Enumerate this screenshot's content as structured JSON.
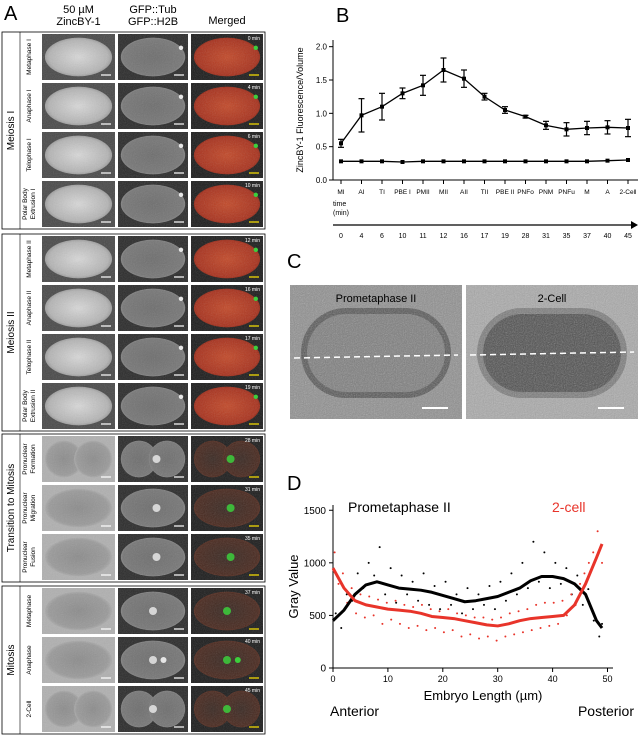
{
  "panel_labels": [
    "A",
    "B",
    "C",
    "D"
  ],
  "panel_a": {
    "columns": [
      [
        "50 µM",
        "ZincBY-1"
      ],
      [
        "GFP::Tub",
        "GFP::H2B"
      ],
      [
        "Merged"
      ]
    ],
    "groups": [
      {
        "label": "Meiosis I",
        "rows": [
          {
            "label": [
              "Metaphase I"
            ],
            "time": "0 min"
          },
          {
            "label": [
              "Anaphase I"
            ],
            "time": "4 min"
          },
          {
            "label": [
              "Telophase I"
            ],
            "time": "6 min"
          },
          {
            "label": [
              "Polar Body",
              "Extrusion I"
            ],
            "time": "10 min"
          }
        ]
      },
      {
        "label": "Meiosis II",
        "rows": [
          {
            "label": [
              "Metaphase II"
            ],
            "time": "12 min"
          },
          {
            "label": [
              "Anaphase II"
            ],
            "time": "16 min"
          },
          {
            "label": [
              "Telophase II"
            ],
            "time": "17 min"
          },
          {
            "label": [
              "Polar Body",
              "Extrusion II"
            ],
            "time": "19 min"
          }
        ]
      },
      {
        "label": "Transition to Mitosis",
        "rows": [
          {
            "label": [
              "Pronuclear",
              "Formation"
            ],
            "time": "28 min"
          },
          {
            "label": [
              "Pronuclear",
              "Migration"
            ],
            "time": "31 min"
          },
          {
            "label": [
              "Pronuclear",
              "Fusion"
            ],
            "time": "35 min"
          }
        ]
      },
      {
        "label": "Mitosis",
        "rows": [
          {
            "label": [
              "Metaphase"
            ],
            "time": "37 min"
          },
          {
            "label": [
              "Anaphase"
            ],
            "time": "40 min"
          },
          {
            "label": [
              "2-Cell"
            ],
            "time": "45 min"
          }
        ]
      }
    ]
  },
  "panel_c": {
    "images": [
      {
        "title": "Prometaphase II"
      },
      {
        "title": "2-Cell"
      }
    ]
  },
  "chart_data": [
    {
      "type": "line",
      "y_label": "ZincBY-1 Fluorescence/Volume",
      "time_axis_label": [
        "time",
        "(min)"
      ],
      "categories": [
        "MI",
        "AI",
        "TI",
        "PBE I",
        "PMII",
        "MII",
        "AII",
        "TII",
        "PBE II",
        "PNFo",
        "PNM",
        "PNFu",
        "M",
        "A",
        "2-Cell"
      ],
      "times": [
        0,
        4,
        6,
        10,
        11,
        12,
        16,
        17,
        19,
        28,
        31,
        35,
        37,
        40,
        45
      ],
      "ylim": [
        0,
        2.1
      ],
      "yticks": [
        {
          "value": 0,
          "label": "0.0"
        },
        0.5,
        {
          "value": 1,
          "label": "1.0"
        },
        1.5,
        {
          "value": 2,
          "label": "2.0"
        }
      ],
      "series": [
        {
          "color": "#000000",
          "values": [
            0.55,
            0.97,
            1.1,
            1.3,
            1.42,
            1.65,
            1.52,
            1.25,
            1.05,
            0.95,
            0.82,
            0.76,
            0.78,
            0.79,
            0.78
          ],
          "errors": [
            0.06,
            0.25,
            0.2,
            0.08,
            0.15,
            0.18,
            0.13,
            0.05,
            0.05,
            0.02,
            0.06,
            0.1,
            0.1,
            0.1,
            0.13
          ]
        },
        {
          "color": "#000000",
          "values": [
            0.28,
            0.28,
            0.28,
            0.27,
            0.28,
            0.28,
            0.28,
            0.28,
            0.28,
            0.28,
            0.28,
            0.28,
            0.28,
            0.29,
            0.3
          ]
        }
      ]
    },
    {
      "type": "line",
      "x_label": "Embryo Length (µm)",
      "y_label": "Gray Value",
      "annotations": [
        "Anterior",
        "Posterior"
      ],
      "xlim": [
        0,
        51
      ],
      "ylim": [
        0,
        1550
      ],
      "xticks": [
        0,
        10,
        20,
        30,
        40,
        50
      ],
      "yticks": [
        0,
        500,
        1000,
        1500
      ],
      "series": [
        {
          "name": "Prometaphase II",
          "color": "#000000",
          "x": [
            0,
            2,
            4,
            6,
            8,
            10,
            12,
            14,
            16,
            18,
            20,
            22,
            24,
            26,
            28,
            30,
            32,
            34,
            36,
            38,
            40,
            42,
            44,
            46,
            48,
            49
          ],
          "values": [
            450,
            550,
            700,
            790,
            820,
            790,
            760,
            750,
            740,
            720,
            690,
            660,
            630,
            640,
            660,
            680,
            720,
            760,
            830,
            870,
            870,
            850,
            800,
            700,
            450,
            380
          ],
          "scatter_x": [
            0.5,
            1.5,
            2.5,
            3.5,
            4.5,
            5.5,
            6.5,
            7.5,
            8.5,
            9.5,
            10.5,
            11.5,
            12.5,
            13.5,
            14.5,
            15.5,
            16.5,
            17.5,
            18.5,
            19.5,
            20.5,
            21.5,
            22.5,
            23.5,
            24.5,
            25.5,
            26.5,
            27.5,
            28.5,
            29.5,
            30.5,
            31.5,
            32.5,
            33.5,
            34.5,
            35.5,
            36.5,
            37.5,
            38.5,
            39.5,
            40.5,
            41.5,
            42.5,
            43.5,
            44.5,
            45.5,
            46.5,
            47.5,
            48.5,
            49
          ],
          "scatter_y": [
            520,
            380,
            700,
            640,
            900,
            760,
            1000,
            880,
            1150,
            700,
            950,
            620,
            880,
            700,
            820,
            640,
            900,
            600,
            780,
            560,
            820,
            600,
            700,
            520,
            760,
            560,
            700,
            600,
            780,
            560,
            820,
            640,
            900,
            700,
            1000,
            760,
            1200,
            820,
            1100,
            760,
            1000,
            800,
            950,
            700,
            880,
            600,
            750,
            450,
            300,
            420
          ]
        },
        {
          "name": "2-cell",
          "color": "#e8342a",
          "x": [
            0,
            2,
            4,
            6,
            8,
            10,
            12,
            14,
            16,
            18,
            20,
            22,
            24,
            26,
            28,
            30,
            32,
            34,
            36,
            38,
            40,
            42,
            44,
            46,
            48,
            49
          ],
          "values": [
            950,
            760,
            640,
            600,
            580,
            560,
            550,
            540,
            520,
            490,
            480,
            470,
            450,
            430,
            410,
            400,
            420,
            450,
            470,
            480,
            490,
            500,
            600,
            800,
            1050,
            1180
          ],
          "scatter_x": [
            0.3,
            1,
            1.8,
            2.6,
            3.4,
            4.2,
            5,
            5.8,
            6.6,
            7.4,
            8.2,
            9,
            9.8,
            10.6,
            11.4,
            12.2,
            13,
            13.8,
            14.6,
            15.4,
            16.2,
            17,
            17.8,
            18.6,
            19.4,
            20.2,
            21,
            21.8,
            22.6,
            23.4,
            24.2,
            25,
            25.8,
            26.6,
            27.4,
            28.2,
            29,
            29.8,
            30.6,
            31.4,
            32.2,
            33,
            33.8,
            34.6,
            35.4,
            36.2,
            37,
            37.8,
            38.6,
            39.4,
            40.2,
            41,
            41.8,
            42.6,
            43.4,
            44.2,
            45,
            45.8,
            46.6,
            47.4,
            48.2,
            49
          ],
          "scatter_y": [
            1100,
            800,
            900,
            620,
            760,
            520,
            700,
            480,
            680,
            500,
            650,
            420,
            620,
            460,
            640,
            420,
            600,
            380,
            580,
            400,
            600,
            360,
            560,
            380,
            540,
            340,
            560,
            360,
            520,
            300,
            500,
            320,
            480,
            280,
            480,
            300,
            460,
            260,
            480,
            300,
            520,
            320,
            540,
            340,
            560,
            360,
            600,
            380,
            620,
            400,
            620,
            420,
            640,
            500,
            700,
            600,
            800,
            900,
            1000,
            1100,
            1300,
            1000
          ]
        }
      ]
    }
  ]
}
